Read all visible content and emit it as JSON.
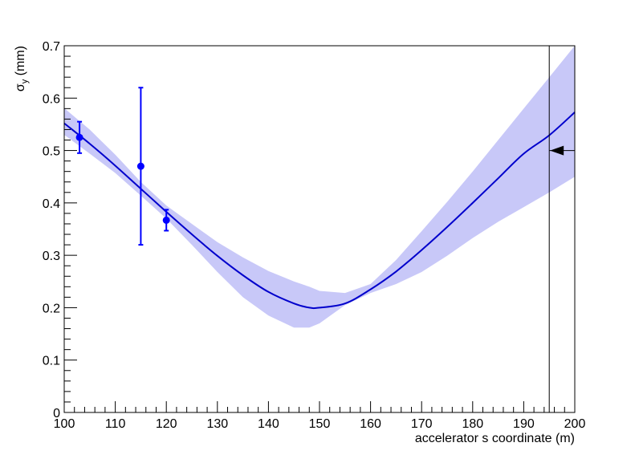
{
  "chart_data": {
    "type": "line",
    "xlabel": "accelerator s coordinate (m)",
    "ylabel": "σ_y (mm)",
    "ylabel_main": "σ",
    "ylabel_sub": "y",
    "ylabel_tail": " (mm)",
    "xlim": [
      100,
      200
    ],
    "ylim": [
      0,
      0.7
    ],
    "x_ticks": [
      100,
      110,
      120,
      130,
      140,
      150,
      160,
      170,
      180,
      190,
      200
    ],
    "x_tick_labels": [
      "100",
      "110",
      "120",
      "130",
      "140",
      "150",
      "160",
      "170",
      "180",
      "190",
      "200"
    ],
    "y_ticks": [
      0,
      0.1,
      0.2,
      0.3,
      0.4,
      0.5,
      0.6,
      0.7
    ],
    "y_tick_labels": [
      "0",
      "0.1",
      "0.2",
      "0.3",
      "0.4",
      "0.5",
      "0.6",
      "0.7"
    ],
    "grid": false,
    "colors": {
      "curve": "#0000cc",
      "band": "#c8c8f8",
      "points": "#0000ff",
      "marker": "#000000"
    },
    "fit_curve": {
      "x": [
        100,
        105,
        110,
        115,
        120,
        125,
        130,
        135,
        140,
        145,
        148,
        150,
        155,
        160,
        165,
        170,
        175,
        180,
        185,
        190,
        195,
        200
      ],
      "y": [
        0.552,
        0.513,
        0.471,
        0.427,
        0.383,
        0.34,
        0.299,
        0.262,
        0.23,
        0.208,
        0.2,
        0.2,
        0.208,
        0.235,
        0.269,
        0.31,
        0.354,
        0.4,
        0.447,
        0.494,
        0.529,
        0.573
      ],
      "lower": [
        0.53,
        0.494,
        0.457,
        0.414,
        0.37,
        0.32,
        0.268,
        0.22,
        0.185,
        0.162,
        0.162,
        0.17,
        0.205,
        0.228,
        0.245,
        0.268,
        0.299,
        0.333,
        0.364,
        0.392,
        0.42,
        0.45
      ],
      "upper": [
        0.581,
        0.54,
        0.492,
        0.44,
        0.395,
        0.36,
        0.325,
        0.296,
        0.27,
        0.25,
        0.24,
        0.232,
        0.228,
        0.245,
        0.291,
        0.346,
        0.402,
        0.46,
        0.52,
        0.58,
        0.64,
        0.7
      ]
    },
    "measurements": [
      {
        "x": 103,
        "y": 0.525,
        "err": 0.03
      },
      {
        "x": 115,
        "y": 0.47,
        "err": 0.15
      },
      {
        "x": 120,
        "y": 0.367,
        "err": 0.02
      }
    ],
    "marker": {
      "x": 195,
      "y": 0.5
    }
  }
}
